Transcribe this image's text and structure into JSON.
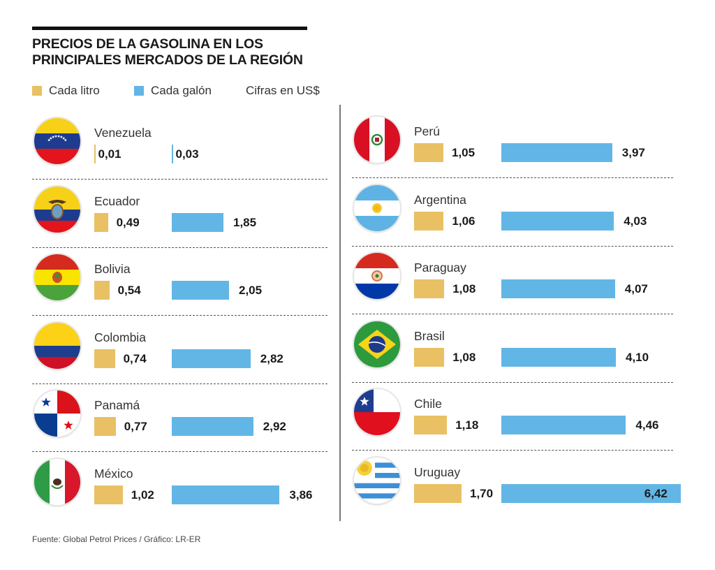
{
  "header": {
    "title_line1": "PRECIOS DE LA GASOLINA EN LOS",
    "title_line2": "PRINCIPALES MERCADOS DE LA REGIÓN"
  },
  "legend": {
    "litro_label": "Cada litro",
    "galon_label": "Cada galón",
    "units_note": "Cifras en US$"
  },
  "colors": {
    "litro": "#e9c063",
    "galon": "#62b6e6"
  },
  "source": "Fuente: Global Petrol Prices / Gráfico: LR-ER",
  "chart_data": {
    "type": "bar",
    "title": "PRECIOS DE LA GASOLINA EN LOS PRINCIPALES MERCADOS DE LA REGIÓN",
    "units": "US$",
    "xlabel": "",
    "ylabel": "",
    "legend_position": "top-left",
    "grid": false,
    "categories": [
      "Venezuela",
      "Ecuador",
      "Bolivia",
      "Colombia",
      "Panamá",
      "México",
      "Perú",
      "Argentina",
      "Paraguay",
      "Brasil",
      "Chile",
      "Uruguay"
    ],
    "series": [
      {
        "name": "Cada litro",
        "values": [
          0.01,
          0.49,
          0.54,
          0.74,
          0.77,
          1.02,
          1.05,
          1.06,
          1.08,
          1.08,
          1.18,
          1.7
        ],
        "labels": [
          "0,01",
          "0,49",
          "0,54",
          "0,74",
          "0,77",
          "1,02",
          "1,05",
          "1,06",
          "1,08",
          "1,08",
          "1,18",
          "1,70"
        ]
      },
      {
        "name": "Cada galón",
        "values": [
          0.03,
          1.85,
          2.05,
          2.82,
          2.92,
          3.86,
          3.97,
          4.03,
          4.07,
          4.1,
          4.46,
          6.42
        ],
        "labels": [
          "0,03",
          "1,85",
          "2,05",
          "2,82",
          "2,92",
          "3,86",
          "3,97",
          "4,03",
          "4,07",
          "4,10",
          "4,46",
          "6,42"
        ]
      }
    ],
    "xlim": [
      0,
      6.5
    ]
  },
  "countries": [
    {
      "name": "Venezuela",
      "flag": "venezuela"
    },
    {
      "name": "Ecuador",
      "flag": "ecuador"
    },
    {
      "name": "Bolivia",
      "flag": "bolivia"
    },
    {
      "name": "Colombia",
      "flag": "colombia"
    },
    {
      "name": "Panamá",
      "flag": "panama"
    },
    {
      "name": "México",
      "flag": "mexico"
    },
    {
      "name": "Perú",
      "flag": "peru"
    },
    {
      "name": "Argentina",
      "flag": "argentina"
    },
    {
      "name": "Paraguay",
      "flag": "paraguay"
    },
    {
      "name": "Brasil",
      "flag": "brasil"
    },
    {
      "name": "Chile",
      "flag": "chile"
    },
    {
      "name": "Uruguay",
      "flag": "uruguay"
    }
  ]
}
